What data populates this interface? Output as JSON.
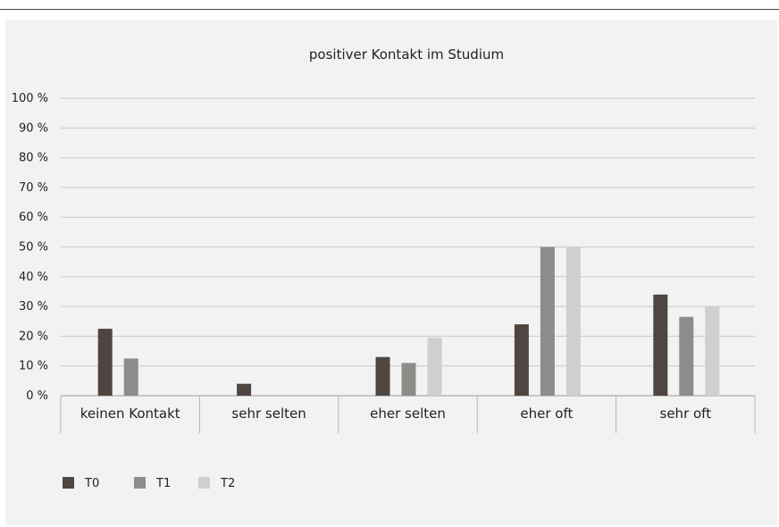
{
  "chart_data": {
    "type": "bar",
    "title": "positiver Kontakt im Studium",
    "categories": [
      "keinen Kontakt",
      "sehr selten",
      "eher selten",
      "eher oft",
      "sehr oft"
    ],
    "series": [
      {
        "name": "T0",
        "values": [
          22.5,
          4,
          13,
          24,
          34
        ],
        "color": "#4f4641"
      },
      {
        "name": "T1",
        "values": [
          12.5,
          0,
          11,
          50,
          26.5
        ],
        "color": "#8c8c89"
      },
      {
        "name": "T2",
        "values": [
          0,
          0,
          19.5,
          50,
          30
        ],
        "color": "#cfcfcf"
      }
    ],
    "ylim": [
      0,
      100
    ],
    "yticks": [
      "0 %",
      "10 %",
      "20 %",
      "30 %",
      "40 %",
      "50 %",
      "60 %",
      "70 %",
      "80 %",
      "90 %",
      "100 %"
    ],
    "grid": true,
    "legend_position": "bottom-left"
  }
}
